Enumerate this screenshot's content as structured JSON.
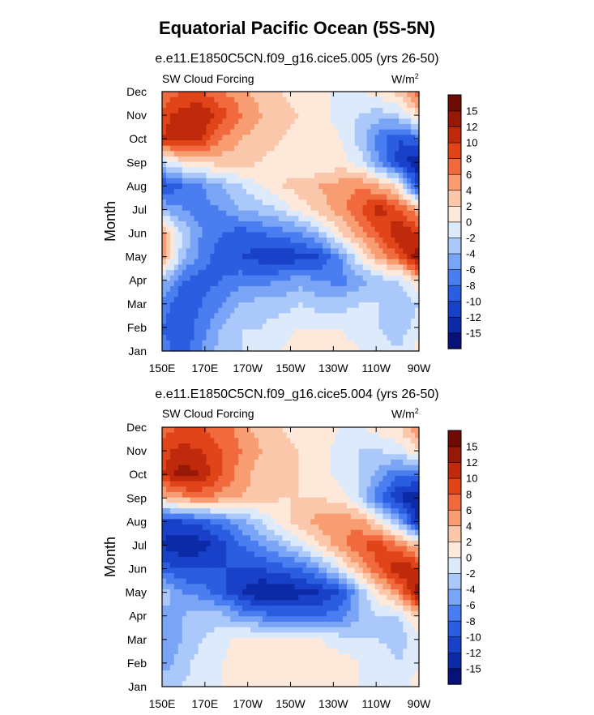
{
  "title": "Equatorial Pacific Ocean (5S-5N)",
  "colorbar": {
    "levels": [
      "-15",
      "-12",
      "-10",
      "-8",
      "-6",
      "-4",
      "-2",
      "0",
      "2",
      "4",
      "6",
      "8",
      "10",
      "12",
      "15"
    ],
    "colors": [
      "#08107a",
      "#0c2aa6",
      "#1840c8",
      "#2a5de0",
      "#4a7ef0",
      "#7aa5f6",
      "#aac8fa",
      "#dceafc",
      "#fde8da",
      "#fbc7aa",
      "#f89c72",
      "#f06a3e",
      "#e04418",
      "#c02a0c",
      "#981808",
      "#6e0c04"
    ]
  },
  "chart_data": [
    {
      "type": "heatmap",
      "title": "e.e11.E1850C5CN.f09_g16.cice5.005 (yrs 26-50)",
      "variable": "SW Cloud Forcing",
      "units": "W/m",
      "units_sup": "2",
      "ylabel": "Month",
      "xticks": [
        "150E",
        "170E",
        "170W",
        "150W",
        "130W",
        "110W",
        "90W"
      ],
      "yticks": [
        "Jan",
        "Feb",
        "Mar",
        "Apr",
        "May",
        "Jun",
        "Jul",
        "Aug",
        "Sep",
        "Oct",
        "Nov",
        "Dec"
      ],
      "z": [
        [
          -7,
          -9,
          -6,
          -3,
          -2,
          -1,
          0,
          1,
          1,
          1,
          0,
          -1,
          -2,
          1
        ],
        [
          -8,
          -10,
          -7,
          -4,
          -2,
          -2,
          -1,
          0,
          0,
          0,
          -1,
          -2,
          -3,
          -1
        ],
        [
          -7,
          -9,
          -8,
          -6,
          -4,
          -3,
          -3,
          -2,
          -3,
          -3,
          -2,
          -2,
          -4,
          -2
        ],
        [
          -3,
          -8,
          -9,
          -8,
          -7,
          -7,
          -6,
          -5,
          -6,
          -7,
          -5,
          -3,
          -2,
          3
        ],
        [
          6,
          -3,
          -7,
          -9,
          -10,
          -11,
          -12,
          -11,
          -10,
          -6,
          0,
          5,
          8,
          14
        ],
        [
          5,
          -2,
          -6,
          -8,
          -9,
          -8,
          -7,
          -6,
          -3,
          2,
          5,
          8,
          12,
          10
        ],
        [
          -4,
          -6,
          -7,
          -6,
          -4,
          -3,
          -2,
          1,
          3,
          5,
          8,
          11,
          8,
          4
        ],
        [
          -10,
          -8,
          -6,
          -4,
          -2,
          0,
          2,
          3,
          4,
          5,
          6,
          4,
          1,
          -11
        ],
        [
          -2,
          1,
          2,
          3,
          3,
          2,
          1,
          0,
          0,
          1,
          -1,
          -6,
          -11,
          -14
        ],
        [
          10,
          12,
          10,
          6,
          4,
          3,
          2,
          1,
          2,
          0,
          -3,
          -7,
          -10,
          -8
        ],
        [
          9,
          11,
          12,
          9,
          6,
          4,
          3,
          2,
          1,
          -1,
          -2,
          -3,
          -2,
          2
        ],
        [
          6,
          8,
          8,
          6,
          5,
          3,
          2,
          1,
          0,
          0,
          0,
          1,
          3,
          8
        ]
      ]
    },
    {
      "type": "heatmap",
      "title": "e.e11.E1850C5CN.f09_g16.cice5.004 (yrs 26-50)",
      "variable": "SW Cloud Forcing",
      "units": "W/m",
      "units_sup": "2",
      "ylabel": "Month",
      "xticks": [
        "150E",
        "170E",
        "170W",
        "150W",
        "130W",
        "110W",
        "90W"
      ],
      "yticks": [
        "Jan",
        "Feb",
        "Mar",
        "Apr",
        "May",
        "Jun",
        "Jul",
        "Aug",
        "Sep",
        "Oct",
        "Nov",
        "Dec"
      ],
      "z": [
        [
          -3,
          -2,
          -1,
          0,
          1,
          2,
          1,
          1,
          1,
          1,
          0,
          -1,
          -1,
          1
        ],
        [
          -5,
          -3,
          -1,
          0,
          1,
          2,
          2,
          1,
          1,
          1,
          0,
          -1,
          -2,
          0
        ],
        [
          -6,
          -4,
          -2,
          -1,
          1,
          1,
          1,
          0,
          0,
          -1,
          -2,
          -2,
          -3,
          -1
        ],
        [
          -5,
          -4,
          -3,
          -3,
          -6,
          -7,
          -8,
          -8,
          -8,
          -7,
          -4,
          -2,
          -2,
          3
        ],
        [
          -2,
          -6,
          -7,
          -9,
          -12,
          -14,
          -14,
          -13,
          -12,
          -10,
          -4,
          2,
          6,
          14
        ],
        [
          -9,
          -10,
          -10,
          -10,
          -10,
          -10,
          -9,
          -8,
          -5,
          -1,
          4,
          8,
          12,
          10
        ],
        [
          -12,
          -14,
          -13,
          -11,
          -8,
          -6,
          -4,
          -1,
          2,
          5,
          8,
          9,
          6,
          3
        ],
        [
          -11,
          -10,
          -9,
          -7,
          -5,
          -2,
          1,
          3,
          5,
          6,
          5,
          1,
          -4,
          -13
        ],
        [
          3,
          5,
          6,
          5,
          4,
          3,
          2,
          2,
          2,
          1,
          -2,
          -8,
          -12,
          -15
        ],
        [
          10,
          13,
          12,
          8,
          5,
          3,
          2,
          2,
          1,
          -1,
          -2,
          -5,
          -8,
          -7
        ],
        [
          9,
          11,
          10,
          8,
          6,
          4,
          3,
          2,
          1,
          -1,
          -2,
          -2,
          -1,
          2
        ],
        [
          7,
          8,
          8,
          7,
          5,
          3,
          2,
          1,
          1,
          0,
          0,
          1,
          2,
          6
        ]
      ]
    }
  ]
}
